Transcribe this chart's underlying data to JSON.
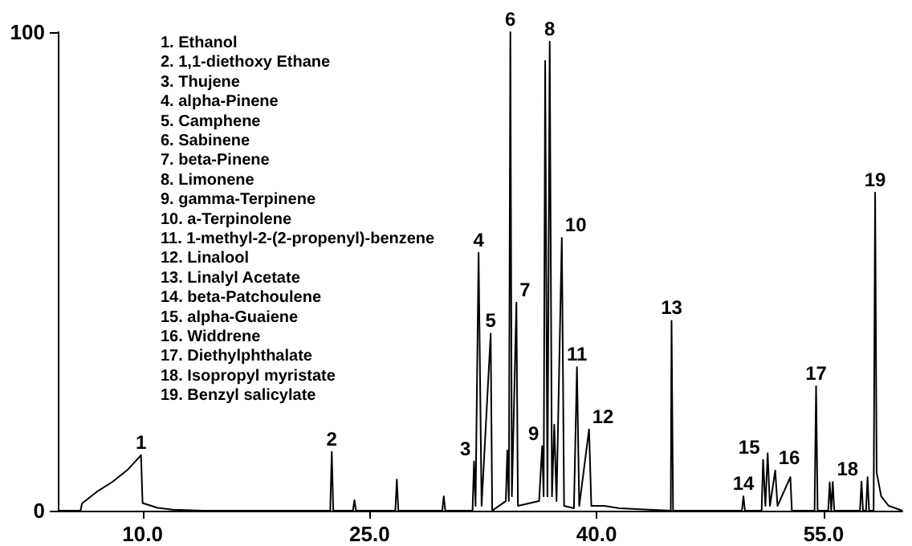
{
  "chart_data": {
    "type": "line",
    "color": "#000000",
    "marker": "none",
    "grid": false,
    "xlim": [
      4.4,
      60.2
    ],
    "ylim": [
      0,
      100
    ],
    "xticks": [
      {
        "value": 10,
        "label": "10.0"
      },
      {
        "value": 25,
        "label": "25.0"
      },
      {
        "value": 40,
        "label": "40.0"
      },
      {
        "value": 55,
        "label": "55.0"
      }
    ],
    "yticks": [
      0,
      100
    ],
    "x": [
      4.4,
      5.9,
      6.0,
      7.0,
      8.0,
      9.0,
      9.9,
      10.0,
      11.0,
      12.0,
      14.0,
      22.4,
      22.5,
      22.6,
      23.9,
      24.0,
      24.1,
      26.7,
      26.8,
      26.9,
      29.8,
      29.9,
      30.0,
      31.8,
      31.9,
      32.0,
      32.2,
      32.4,
      33.0,
      33.1,
      34.0,
      34.1,
      34.2,
      34.3,
      34.4,
      34.7,
      34.8,
      36.2,
      36.4,
      36.5,
      36.6,
      36.75,
      36.9,
      37.05,
      37.2,
      37.35,
      37.7,
      37.85,
      38.5,
      38.7,
      38.85,
      39.5,
      39.65,
      40.5,
      41.5,
      44.9,
      44.95,
      45.05,
      49.6,
      49.7,
      49.8,
      50.9,
      51.0,
      51.15,
      51.3,
      51.45,
      51.8,
      51.95,
      52.8,
      52.9,
      54.4,
      54.5,
      54.6,
      55.3,
      55.4,
      55.5,
      55.6,
      55.7,
      57.4,
      57.5,
      57.6,
      57.8,
      57.9,
      58.0,
      58.3,
      58.4,
      58.5,
      58.8,
      59.3,
      60.2
    ],
    "values": [
      0,
      0,
      1.5,
      4,
      6,
      8.5,
      11.6,
      1.6,
      0.6,
      0.2,
      0,
      0,
      12.3,
      0,
      0,
      2.2,
      0,
      0,
      6.5,
      0,
      0,
      3,
      0,
      0,
      10.3,
      1,
      53.9,
      1,
      37,
      0,
      2,
      12.6,
      2,
      100,
      3,
      43.5,
      1,
      2,
      13.5,
      3,
      94,
      3,
      98,
      3,
      18,
      2,
      57,
      1,
      0.5,
      30,
      1,
      17,
      1,
      1,
      0.5,
      0,
      39.7,
      0,
      0,
      3,
      0,
      0,
      10.6,
      1,
      12,
      1,
      8.4,
      1,
      7,
      0,
      0,
      26,
      0,
      0,
      5.9,
      0,
      6,
      0,
      0,
      6.1,
      0,
      0,
      7,
      0,
      0,
      66.5,
      8,
      3,
      1,
      0
    ],
    "annotations": [
      "1. Ethanol",
      "2. 1,1-diethoxy Ethane",
      "3. Thujene",
      "4. alpha-Pinene",
      "5. Camphene",
      "6. Sabinene",
      "7. beta-Pinene",
      "8. Limonene",
      "9. gamma-Terpinene",
      "10. a-Terpinolene",
      "11. 1-methyl-2-(2-propenyl)-benzene",
      "12. Linalool",
      "13. Linalyl Acetate",
      "14. beta-Patchoulene",
      "15. alpha-Guaiene",
      "16. Widdrene",
      "17. Diethylphthalate",
      "18. Isopropyl myristate",
      "19. Benzyl salicylate",
      {
        "text": "1",
        "x": 9.9,
        "y": 11.6
      },
      {
        "text": "2",
        "x": 22.5,
        "y": 12.3
      },
      {
        "text": "3",
        "x": 31.9,
        "y": 10.3
      },
      {
        "text": "4",
        "x": 32.2,
        "y": 53.9
      },
      {
        "text": "5",
        "x": 33.0,
        "y": 37
      },
      {
        "text": "6",
        "x": 34.3,
        "y": 100
      },
      {
        "text": "7",
        "x": 34.7,
        "y": 43.5
      },
      {
        "text": "8",
        "x": 36.9,
        "y": 98
      },
      {
        "text": "9",
        "x": 36.4,
        "y": 13.5
      },
      {
        "text": "10",
        "x": 37.7,
        "y": 57
      },
      {
        "text": "11",
        "x": 38.7,
        "y": 30
      },
      {
        "text": "12",
        "x": 39.5,
        "y": 17
      },
      {
        "text": "13",
        "x": 44.95,
        "y": 39.7
      },
      {
        "text": "14",
        "x": 49.7,
        "y": 3
      },
      {
        "text": "15",
        "x": 51.0,
        "y": 10.6
      },
      {
        "text": "16",
        "x": 51.8,
        "y": 8.4
      },
      {
        "text": "17",
        "x": 54.5,
        "y": 26
      },
      {
        "text": "18",
        "x": 57.5,
        "y": 6.1
      },
      {
        "text": "19",
        "x": 58.4,
        "y": 66.5
      }
    ]
  }
}
